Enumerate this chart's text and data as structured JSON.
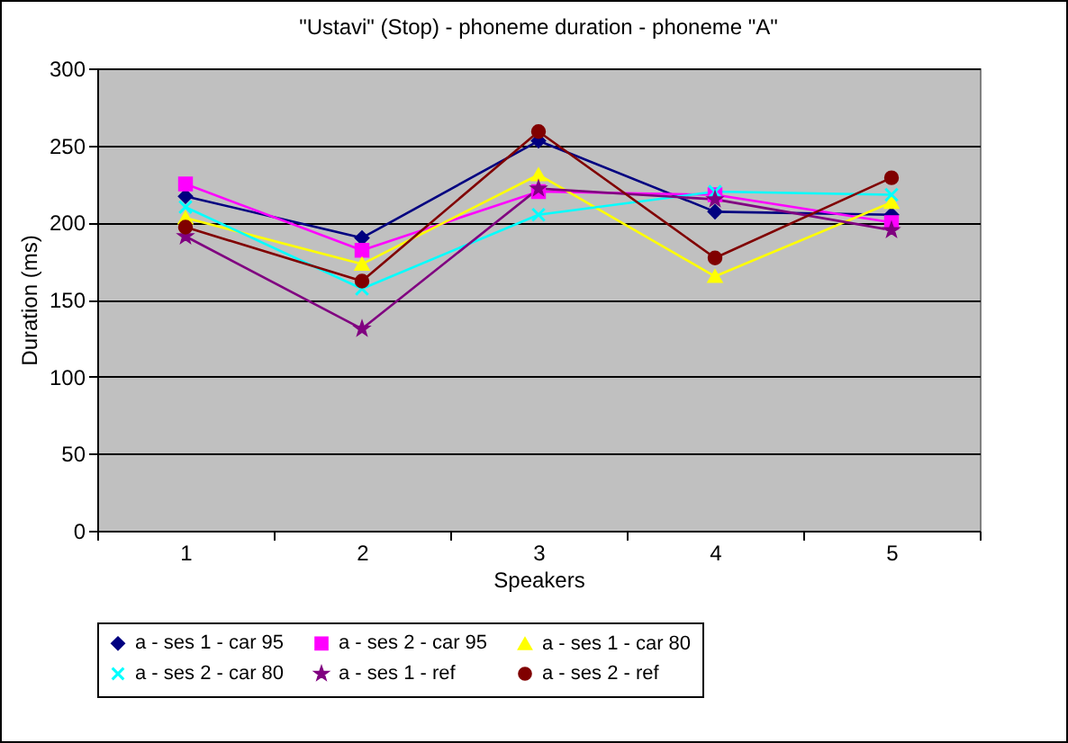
{
  "chart_data": {
    "type": "line",
    "title": "\"Ustavi\" (Stop) - phoneme duration - phoneme \"A\"",
    "xlabel": "Speakers",
    "ylabel": "Duration (ms)",
    "categories": [
      "1",
      "2",
      "3",
      "4",
      "5"
    ],
    "series": [
      {
        "name": "a - ses 1 - car 95",
        "color": "#000080",
        "marker": "diamond",
        "values": [
          217,
          190,
          253,
          207,
          205
        ]
      },
      {
        "name": "a - ses 2 - car 95",
        "color": "#ff00ff",
        "marker": "square",
        "values": [
          225,
          182,
          220,
          218,
          200
        ]
      },
      {
        "name": "a - ses 1 - car 80",
        "color": "#ffff00",
        "marker": "triangle",
        "values": [
          203,
          173,
          231,
          165,
          213
        ]
      },
      {
        "name": "a - ses 2 - car 80",
        "color": "#00ffff",
        "marker": "cross",
        "values": [
          210,
          157,
          205,
          220,
          218
        ]
      },
      {
        "name": "a - ses 1 - ref",
        "color": "#800080",
        "marker": "star",
        "values": [
          191,
          131,
          222,
          215,
          195
        ]
      },
      {
        "name": "a - ses 2 - ref",
        "color": "#800000",
        "marker": "circle",
        "values": [
          197,
          162,
          259,
          177,
          229
        ]
      }
    ],
    "ylim": [
      0,
      300
    ],
    "yticks": [
      0,
      50,
      100,
      150,
      200,
      250,
      300
    ],
    "grid": "y",
    "legend": "bottom"
  }
}
